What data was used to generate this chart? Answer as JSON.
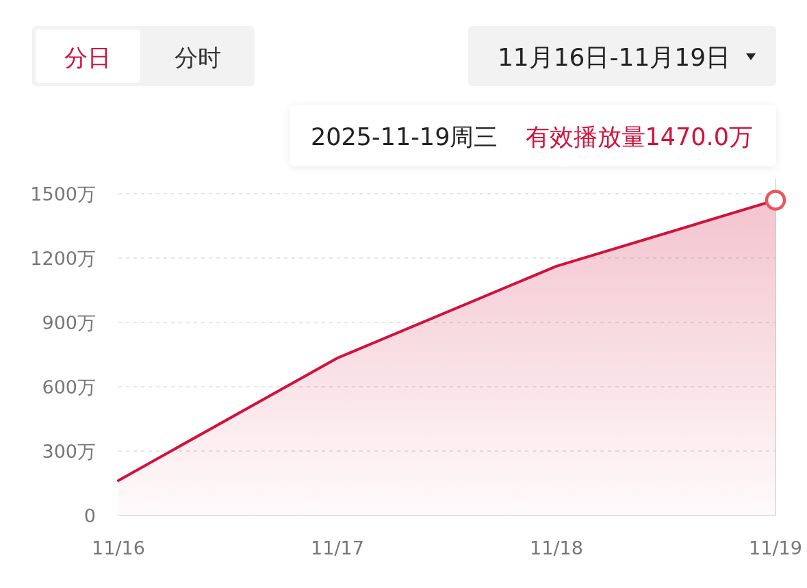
{
  "chart_data": {
    "type": "area",
    "categories": [
      "11/16",
      "11/17",
      "11/18",
      "11/19"
    ],
    "series": [
      {
        "color": "#d0123c",
        "values": [
          163,
          734,
          1162,
          1470
        ]
      }
    ],
    "ylim": [
      0,
      1570
    ],
    "yticks": [
      {
        "value": 0,
        "label": "0"
      },
      {
        "value": 300,
        "label": "300万"
      },
      {
        "value": 600,
        "label": "600万"
      },
      {
        "value": 900,
        "label": "900万"
      },
      {
        "value": 1200,
        "label": "1200万"
      },
      {
        "value": 1500,
        "label": "1500万"
      }
    ],
    "grid": "y",
    "marker": "none",
    "line_style": "solid",
    "annotations": [
      "分日",
      "分时",
      "11月16日-11月19日",
      "2025-11-19周三",
      {
        "text": "有效播放量1470.0万",
        "x": "11/19",
        "y": 1470
      }
    ]
  }
}
